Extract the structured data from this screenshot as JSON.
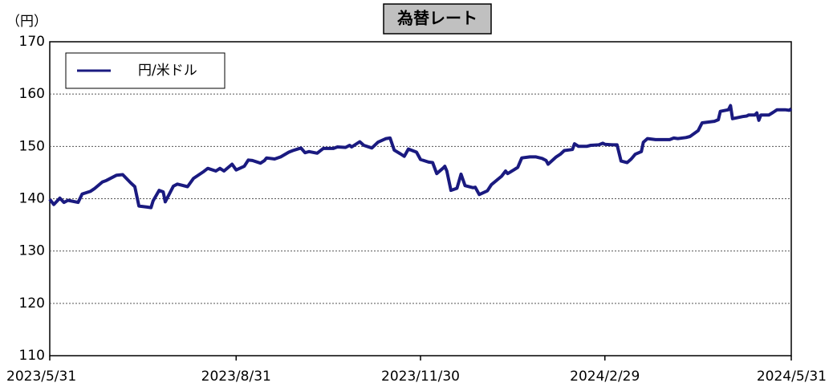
{
  "chart_data": {
    "type": "line",
    "title": "為替レート",
    "y_label": "（円）",
    "xlim": [
      "2023-05-31",
      "2024-05-31"
    ],
    "xticks": [
      {
        "value": "2023-05-31",
        "label": "2023/5/31"
      },
      {
        "value": "2023-08-31",
        "label": "2023/8/31"
      },
      {
        "value": "2023-11-30",
        "label": "2023/11/30"
      },
      {
        "value": "2024-02-29",
        "label": "2024/2/29"
      },
      {
        "value": "2024-05-31",
        "label": "2024/5/31"
      }
    ],
    "ylim": [
      110,
      170
    ],
    "yticks": [
      110,
      120,
      130,
      140,
      150,
      160,
      170
    ],
    "grid": true,
    "legend": "upper left",
    "x": [
      "2023-05-31",
      "2023-06-02",
      "2023-06-05",
      "2023-06-07",
      "2023-06-09",
      "2023-06-14",
      "2023-06-16",
      "2023-06-20",
      "2023-06-22",
      "2023-06-26",
      "2023-06-28",
      "2023-07-03",
      "2023-07-06",
      "2023-07-10",
      "2023-07-12",
      "2023-07-14",
      "2023-07-18",
      "2023-07-20",
      "2023-07-21",
      "2023-07-24",
      "2023-07-26",
      "2023-07-27",
      "2023-07-31",
      "2023-08-02",
      "2023-08-04",
      "2023-08-07",
      "2023-08-10",
      "2023-08-15",
      "2023-08-17",
      "2023-08-21",
      "2023-08-23",
      "2023-08-25",
      "2023-08-29",
      "2023-08-31",
      "2023-09-04",
      "2023-09-06",
      "2023-09-08",
      "2023-09-12",
      "2023-09-14",
      "2023-09-15",
      "2023-09-19",
      "2023-09-22",
      "2023-09-26",
      "2023-09-28",
      "2023-10-02",
      "2023-10-04",
      "2023-10-06",
      "2023-10-10",
      "2023-10-13",
      "2023-10-18",
      "2023-10-20",
      "2023-10-24",
      "2023-10-26",
      "2023-10-27",
      "2023-10-31",
      "2023-11-02",
      "2023-11-06",
      "2023-11-09",
      "2023-11-13",
      "2023-11-15",
      "2023-11-17",
      "2023-11-20",
      "2023-11-22",
      "2023-11-24",
      "2023-11-28",
      "2023-11-30",
      "2023-12-04",
      "2023-12-06",
      "2023-12-08",
      "2023-12-11",
      "2023-12-12",
      "2023-12-13",
      "2023-12-15",
      "2023-12-18",
      "2023-12-20",
      "2023-12-22",
      "2023-12-26",
      "2023-12-27",
      "2023-12-29",
      "2024-01-02",
      "2024-01-04",
      "2024-01-09",
      "2024-01-11",
      "2024-01-12",
      "2024-01-15",
      "2024-01-17",
      "2024-01-19",
      "2024-01-23",
      "2024-01-26",
      "2024-01-29",
      "2024-01-31",
      "2024-02-01",
      "2024-02-05",
      "2024-02-07",
      "2024-02-09",
      "2024-02-13",
      "2024-02-14",
      "2024-02-16",
      "2024-02-20",
      "2024-02-22",
      "2024-02-26",
      "2024-02-28",
      "2024-02-29",
      "2024-03-04",
      "2024-03-06",
      "2024-03-08",
      "2024-03-11",
      "2024-03-13",
      "2024-03-15",
      "2024-03-18",
      "2024-03-19",
      "2024-03-21",
      "2024-03-25",
      "2024-03-28",
      "2024-04-01",
      "2024-04-03",
      "2024-04-05",
      "2024-04-09",
      "2024-04-11",
      "2024-04-15",
      "2024-04-17",
      "2024-04-19",
      "2024-04-23",
      "2024-04-25",
      "2024-04-26",
      "2024-04-30",
      "2024-05-01",
      "2024-05-02",
      "2024-05-07",
      "2024-05-09",
      "2024-05-10",
      "2024-05-13",
      "2024-05-14",
      "2024-05-15",
      "2024-05-16",
      "2024-05-20",
      "2024-05-22",
      "2024-05-24",
      "2024-05-28",
      "2024-05-30",
      "2024-05-31"
    ],
    "series": [
      {
        "name": "円/米ドル",
        "color": "#1a1a80",
        "values": [
          139.9,
          138.9,
          140.1,
          139.3,
          139.7,
          139.3,
          140.9,
          141.4,
          141.9,
          143.2,
          143.5,
          144.5,
          144.6,
          143.0,
          142.3,
          138.6,
          138.4,
          138.3,
          139.6,
          141.6,
          141.3,
          139.4,
          142.4,
          142.8,
          142.6,
          142.3,
          143.9,
          145.2,
          145.8,
          145.3,
          145.8,
          145.3,
          146.6,
          145.5,
          146.2,
          147.4,
          147.3,
          146.8,
          147.3,
          147.8,
          147.6,
          148.0,
          148.9,
          149.2,
          149.7,
          148.8,
          149.0,
          148.7,
          149.6,
          149.6,
          149.9,
          149.8,
          150.2,
          149.9,
          150.9,
          150.2,
          149.7,
          150.8,
          151.5,
          151.6,
          149.3,
          148.6,
          148.1,
          149.5,
          148.9,
          147.5,
          147.0,
          146.9,
          144.8,
          145.8,
          146.2,
          145.3,
          141.6,
          142.0,
          144.7,
          142.5,
          142.1,
          142.2,
          140.8,
          141.5,
          142.7,
          144.3,
          145.3,
          144.8,
          145.5,
          146.0,
          147.8,
          148.0,
          148.0,
          147.7,
          147.3,
          146.6,
          148.0,
          148.5,
          149.2,
          149.4,
          150.5,
          150.0,
          150.0,
          150.2,
          150.3,
          150.6,
          150.4,
          150.3,
          150.3,
          147.2,
          146.9,
          147.6,
          148.5,
          149.0,
          150.8,
          151.5,
          151.3,
          151.3,
          151.3,
          151.6,
          151.5,
          151.7,
          151.9,
          153.0,
          154.5,
          154.6,
          154.8,
          155.1,
          156.7,
          157.0,
          157.8,
          155.3,
          155.7,
          155.8,
          156.0,
          156.0,
          156.4,
          155.0,
          156.0,
          156.0,
          156.5,
          157.0,
          157.0,
          156.9,
          157.2
        ]
      }
    ]
  }
}
